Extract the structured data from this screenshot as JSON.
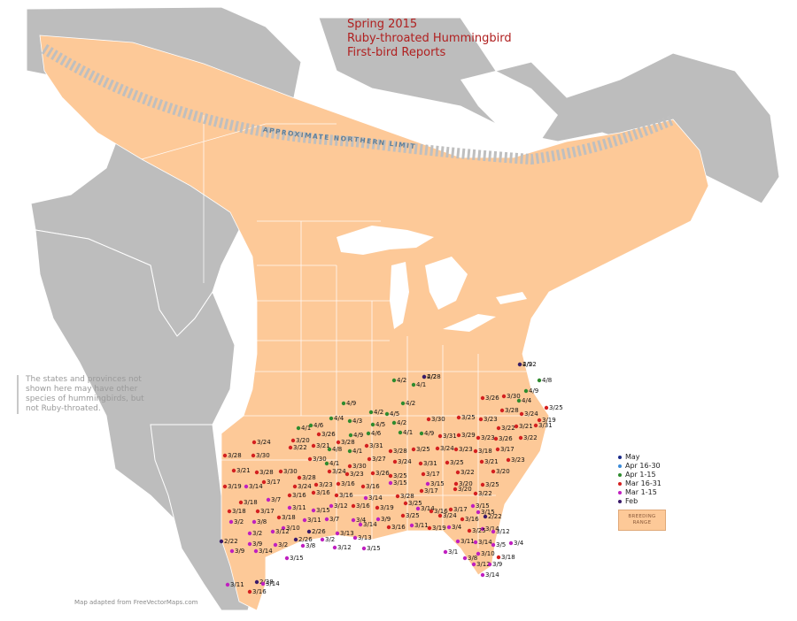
{
  "title": {
    "line1": "Spring 2015",
    "line2": "Ruby-throated Hummingbird",
    "line3": "First-bird Reports"
  },
  "limit_label": "APPROXIMATE NORTHERN LIMIT",
  "note": "The states and provinces not shown here may have other species of hummingbirds, but not Ruby-throated.",
  "credit": "Map adapted from FreeVectorMaps.com",
  "legend": {
    "items": [
      {
        "label": "May",
        "color": "#1a2a8a"
      },
      {
        "label": "Apr 16-30",
        "color": "#3a8ad8"
      },
      {
        "label": "Apr 1-15",
        "color": "#2e8b2e"
      },
      {
        "label": "Mar 16-31",
        "color": "#d42020"
      },
      {
        "label": "Mar 1-15",
        "color": "#c020c0"
      },
      {
        "label": "Feb",
        "color": "#3a1a6a"
      }
    ],
    "range_line1": "BREEDING",
    "range_line2": "RANGE"
  },
  "colors": {
    "ocean": "#ffffff",
    "land_outside": "#bdbdbd",
    "breeding_range": "#fdc998",
    "lakes": "#ffffff",
    "limit_band": "#bfbfbf"
  },
  "reports": [
    {
      "label": "4/9",
      "color": "#2e8b2e"
    },
    {
      "label": "4/2",
      "color": "#2e8b2e"
    },
    {
      "label": "4/2",
      "color": "#2e8b2e"
    },
    {
      "label": "4/8",
      "color": "#2e8b2e"
    },
    {
      "label": "4/9",
      "color": "#2e8b2e"
    },
    {
      "label": "4/9",
      "color": "#2e8b2e"
    },
    {
      "label": "4/1",
      "color": "#2e8b2e"
    },
    {
      "label": "4/2",
      "color": "#2e8b2e"
    },
    {
      "label": "4/5",
      "color": "#2e8b2e"
    },
    {
      "label": "4/2",
      "color": "#2e8b2e"
    },
    {
      "label": "3/26",
      "color": "#d42020"
    },
    {
      "label": "3/30",
      "color": "#d42020"
    },
    {
      "label": "4/4",
      "color": "#2e8b2e"
    },
    {
      "label": "3/25",
      "color": "#d42020"
    },
    {
      "label": "3/28",
      "color": "#d42020"
    },
    {
      "label": "3/19",
      "color": "#d42020"
    },
    {
      "label": "3/24",
      "color": "#d42020"
    },
    {
      "label": "4/1",
      "color": "#2e8b2e"
    },
    {
      "label": "4/6",
      "color": "#2e8b2e"
    },
    {
      "label": "4/4",
      "color": "#2e8b2e"
    },
    {
      "label": "4/3",
      "color": "#2e8b2e"
    },
    {
      "label": "4/5",
      "color": "#2e8b2e"
    },
    {
      "label": "4/2",
      "color": "#2e8b2e"
    },
    {
      "label": "3/30",
      "color": "#d42020"
    },
    {
      "label": "3/25",
      "color": "#d42020"
    },
    {
      "label": "3/23",
      "color": "#d42020"
    },
    {
      "label": "3/22",
      "color": "#d42020"
    },
    {
      "label": "3/21",
      "color": "#d42020"
    },
    {
      "label": "3/31",
      "color": "#d42020"
    },
    {
      "label": "3/24",
      "color": "#d42020"
    },
    {
      "label": "3/20",
      "color": "#d42020"
    },
    {
      "label": "3/26",
      "color": "#d42020"
    },
    {
      "label": "3/28",
      "color": "#d42020"
    },
    {
      "label": "4/9",
      "color": "#2e8b2e"
    },
    {
      "label": "4/6",
      "color": "#2e8b2e"
    },
    {
      "label": "4/1",
      "color": "#2e8b2e"
    },
    {
      "label": "4/9",
      "color": "#2e8b2e"
    },
    {
      "label": "3/31",
      "color": "#d42020"
    },
    {
      "label": "3/29",
      "color": "#d42020"
    },
    {
      "label": "3/23",
      "color": "#d42020"
    },
    {
      "label": "3/26",
      "color": "#d42020"
    },
    {
      "label": "3/22",
      "color": "#d42020"
    },
    {
      "label": "3/22",
      "color": "#d42020"
    },
    {
      "label": "3/21",
      "color": "#d42020"
    },
    {
      "label": "4/8",
      "color": "#2e8b2e"
    },
    {
      "label": "4/1",
      "color": "#2e8b2e"
    },
    {
      "label": "3/31",
      "color": "#d42020"
    },
    {
      "label": "3/28",
      "color": "#d42020"
    },
    {
      "label": "3/25",
      "color": "#d42020"
    },
    {
      "label": "3/24",
      "color": "#d42020"
    },
    {
      "label": "3/23",
      "color": "#d42020"
    },
    {
      "label": "3/18",
      "color": "#d42020"
    },
    {
      "label": "3/17",
      "color": "#d42020"
    },
    {
      "label": "3/28",
      "color": "#d42020"
    },
    {
      "label": "3/30",
      "color": "#d42020"
    },
    {
      "label": "3/30",
      "color": "#d42020"
    },
    {
      "label": "4/1",
      "color": "#2e8b2e"
    },
    {
      "label": "3/30",
      "color": "#d42020"
    },
    {
      "label": "3/27",
      "color": "#d42020"
    },
    {
      "label": "3/24",
      "color": "#d42020"
    },
    {
      "label": "3/31",
      "color": "#d42020"
    },
    {
      "label": "3/25",
      "color": "#d42020"
    },
    {
      "label": "3/21",
      "color": "#d42020"
    },
    {
      "label": "3/23",
      "color": "#d42020"
    },
    {
      "label": "3/21",
      "color": "#d42020"
    },
    {
      "label": "3/28",
      "color": "#d42020"
    },
    {
      "label": "3/30",
      "color": "#d42020"
    },
    {
      "label": "3/28",
      "color": "#d42020"
    },
    {
      "label": "3/24",
      "color": "#d42020"
    },
    {
      "label": "3/23",
      "color": "#d42020"
    },
    {
      "label": "3/26",
      "color": "#d42020"
    },
    {
      "label": "3/25",
      "color": "#d42020"
    },
    {
      "label": "3/17",
      "color": "#d42020"
    },
    {
      "label": "3/22",
      "color": "#d42020"
    },
    {
      "label": "3/20",
      "color": "#d42020"
    },
    {
      "label": "3/17",
      "color": "#d42020"
    },
    {
      "label": "3/24",
      "color": "#d42020"
    },
    {
      "label": "3/23",
      "color": "#d42020"
    },
    {
      "label": "3/16",
      "color": "#d42020"
    },
    {
      "label": "3/16",
      "color": "#d42020"
    },
    {
      "label": "3/15",
      "color": "#c020c0"
    },
    {
      "label": "3/15",
      "color": "#c020c0"
    },
    {
      "label": "3/20",
      "color": "#d42020"
    },
    {
      "label": "3/25",
      "color": "#d42020"
    },
    {
      "label": "3/19",
      "color": "#d42020"
    },
    {
      "label": "3/14",
      "color": "#c020c0"
    },
    {
      "label": "3/16",
      "color": "#d42020"
    },
    {
      "label": "3/16",
      "color": "#d42020"
    },
    {
      "label": "3/16",
      "color": "#d42020"
    },
    {
      "label": "3/14",
      "color": "#c020c0"
    },
    {
      "label": "3/28",
      "color": "#d42020"
    },
    {
      "label": "3/17",
      "color": "#d42020"
    },
    {
      "label": "3/20",
      "color": "#d42020"
    },
    {
      "label": "3/22",
      "color": "#d42020"
    },
    {
      "label": "3/18",
      "color": "#d42020"
    },
    {
      "label": "3/7",
      "color": "#c020c0"
    },
    {
      "label": "3/11",
      "color": "#c020c0"
    },
    {
      "label": "3/15",
      "color": "#c020c0"
    },
    {
      "label": "3/12",
      "color": "#c020c0"
    },
    {
      "label": "3/16",
      "color": "#d42020"
    },
    {
      "label": "3/19",
      "color": "#d42020"
    },
    {
      "label": "3/25",
      "color": "#d42020"
    },
    {
      "label": "3/16",
      "color": "#d42020"
    },
    {
      "label": "3/17",
      "color": "#d42020"
    },
    {
      "label": "3/15",
      "color": "#c020c0"
    },
    {
      "label": "3/18",
      "color": "#d42020"
    },
    {
      "label": "3/17",
      "color": "#d42020"
    },
    {
      "label": "3/18",
      "color": "#d42020"
    },
    {
      "label": "3/11",
      "color": "#c020c0"
    },
    {
      "label": "3/7",
      "color": "#c020c0"
    },
    {
      "label": "3/4",
      "color": "#c020c0"
    },
    {
      "label": "3/9",
      "color": "#c020c0"
    },
    {
      "label": "3/25",
      "color": "#d42020"
    },
    {
      "label": "3/14",
      "color": "#c020c0"
    },
    {
      "label": "3/24",
      "color": "#d42020"
    },
    {
      "label": "3/16",
      "color": "#d42020"
    },
    {
      "label": "3/15",
      "color": "#c020c0"
    },
    {
      "label": "3/2",
      "color": "#c020c0"
    },
    {
      "label": "3/8",
      "color": "#c020c0"
    },
    {
      "label": "3/10",
      "color": "#c020c0"
    },
    {
      "label": "2/26",
      "color": "#3a1a6a"
    },
    {
      "label": "3/13",
      "color": "#c020c0"
    },
    {
      "label": "3/14",
      "color": "#c020c0"
    },
    {
      "label": "3/16",
      "color": "#d42020"
    },
    {
      "label": "3/11",
      "color": "#c020c0"
    },
    {
      "label": "3/19",
      "color": "#d42020"
    },
    {
      "label": "3/4",
      "color": "#c020c0"
    },
    {
      "label": "2/22",
      "color": "#3a1a6a"
    },
    {
      "label": "3/2",
      "color": "#c020c0"
    },
    {
      "label": "3/12",
      "color": "#c020c0"
    },
    {
      "label": "2/26",
      "color": "#3a1a6a"
    },
    {
      "label": "3/2",
      "color": "#c020c0"
    },
    {
      "label": "3/13",
      "color": "#c020c0"
    },
    {
      "label": "3/14",
      "color": "#c020c0"
    },
    {
      "label": "3/12",
      "color": "#c020c0"
    },
    {
      "label": "3/25",
      "color": "#d42020"
    },
    {
      "label": "3/9",
      "color": "#c020c0"
    },
    {
      "label": "3/2",
      "color": "#c020c0"
    },
    {
      "label": "3/8",
      "color": "#c020c0"
    },
    {
      "label": "3/12",
      "color": "#c020c0"
    },
    {
      "label": "3/15",
      "color": "#c020c0"
    },
    {
      "label": "3/14",
      "color": "#c020c0"
    },
    {
      "label": "3/5",
      "color": "#c020c0"
    },
    {
      "label": "2/22",
      "color": "#3a1a6a"
    },
    {
      "label": "3/9",
      "color": "#c020c0"
    },
    {
      "label": "3/14",
      "color": "#c020c0"
    },
    {
      "label": "3/11",
      "color": "#c020c0"
    },
    {
      "label": "3/10",
      "color": "#c020c0"
    },
    {
      "label": "3/18",
      "color": "#d42020"
    },
    {
      "label": "3/12",
      "color": "#c020c0"
    },
    {
      "label": "2/28",
      "color": "#3a1a6a"
    },
    {
      "label": "3/15",
      "color": "#c020c0"
    },
    {
      "label": "3/14",
      "color": "#c020c0"
    },
    {
      "label": "3/11",
      "color": "#c020c0"
    },
    {
      "label": "3/16",
      "color": "#d42020"
    },
    {
      "label": "3/14",
      "color": "#c020c0"
    },
    {
      "label": "3/9",
      "color": "#c020c0"
    },
    {
      "label": "3/4",
      "color": "#c020c0"
    },
    {
      "label": "3/8",
      "color": "#c020c0"
    },
    {
      "label": "3/1",
      "color": "#c020c0"
    },
    {
      "label": "2/22",
      "color": "#3a1a6a"
    },
    {
      "label": "2/28",
      "color": "#3a1a6a"
    }
  ]
}
